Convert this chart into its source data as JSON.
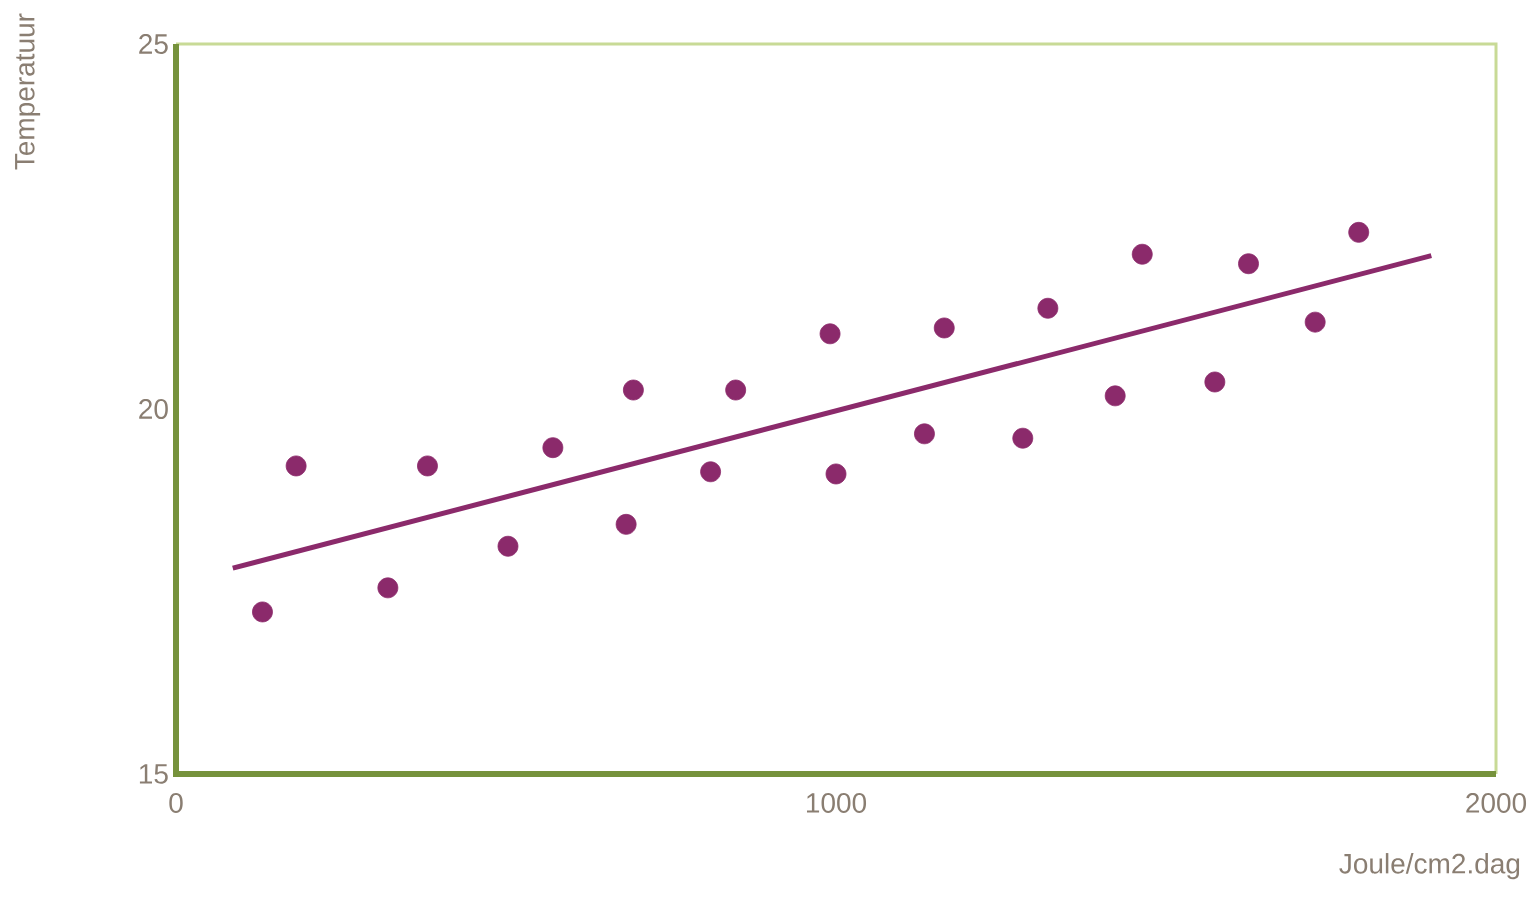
{
  "chart_data": {
    "type": "scatter",
    "xlabel": "Joule/cm2.dag",
    "ylabel": "Temperatuur",
    "xlim": [
      0,
      2000
    ],
    "ylim": [
      15,
      25
    ],
    "xticks": [
      0,
      1000,
      2000
    ],
    "yticks": [
      15,
      20,
      25
    ],
    "grid": false,
    "series": [
      {
        "marker": "circle",
        "color": "#8b2a6b",
        "x": [
          131,
          182,
          321,
          381,
          503,
          571,
          682,
          693,
          810,
          848,
          991,
          1000,
          1134,
          1164,
          1283,
          1321,
          1423,
          1464,
          1574,
          1625,
          1726,
          1792
        ],
        "values": [
          17.22,
          19.22,
          17.55,
          19.22,
          18.12,
          19.47,
          18.42,
          20.26,
          19.14,
          20.26,
          21.03,
          19.11,
          19.66,
          21.11,
          19.6,
          21.38,
          20.18,
          22.12,
          20.37,
          21.99,
          21.19,
          22.42
        ]
      },
      {
        "type": "line",
        "marker": "none",
        "color": "#8b2a6b",
        "x": [
          86,
          1902
        ],
        "values": [
          17.82,
          22.1
        ]
      }
    ]
  }
}
